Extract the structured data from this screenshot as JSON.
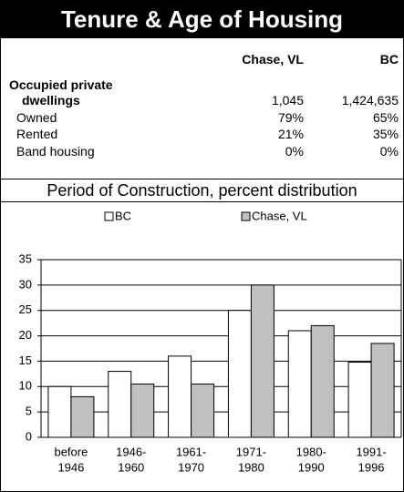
{
  "header": {
    "title": "Tenure & Age of Housing"
  },
  "table": {
    "columns": [
      "Chase, VL",
      "BC"
    ],
    "rows": [
      {
        "label": [
          "Occupied private",
          "dwellings"
        ],
        "values": [
          "1,045",
          "1,424,635"
        ]
      },
      {
        "label": [
          "Owned"
        ],
        "values": [
          "79%",
          "65%"
        ]
      },
      {
        "label": [
          "Rented"
        ],
        "values": [
          "21%",
          "35%"
        ]
      },
      {
        "label": [
          "Band housing"
        ],
        "values": [
          "0%",
          "0%"
        ]
      }
    ]
  },
  "chart_data": {
    "type": "bar",
    "title": "Period of Construction, percent distribution",
    "categories": [
      [
        "before",
        "1946"
      ],
      [
        "1946-",
        "1960"
      ],
      [
        "1961-",
        "1970"
      ],
      [
        "1971-",
        "1980"
      ],
      [
        "1980-",
        "1990"
      ],
      [
        "1991-",
        "1996"
      ]
    ],
    "series": [
      {
        "name": "BC",
        "color": "#ffffff",
        "values": [
          10,
          13,
          16,
          25,
          21,
          14.8
        ]
      },
      {
        "name": "Chase, VL",
        "color": "#c0c0c0",
        "values": [
          8,
          10.5,
          10.5,
          30,
          22,
          18.5
        ]
      }
    ],
    "ylim": [
      0,
      35
    ],
    "yticks": [
      0,
      5,
      10,
      15,
      20,
      25,
      30,
      35
    ],
    "grid": true,
    "legend": "top"
  }
}
